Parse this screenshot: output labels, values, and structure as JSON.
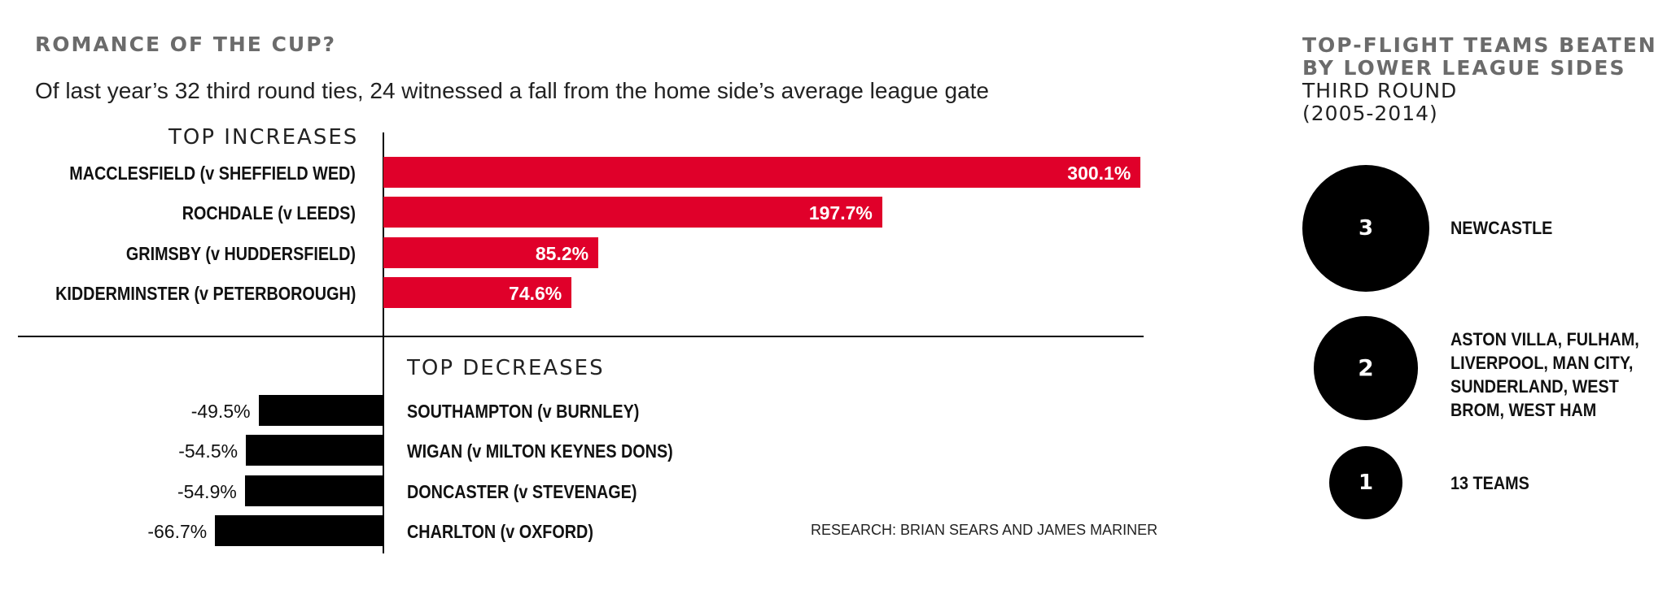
{
  "chart_data": [
    {
      "type": "bar",
      "orientation": "horizontal",
      "title": "ROMANCE OF THE CUP?",
      "subtitle": "Of last year’s 32 third round ties, 24 witnessed a fall from the home side’s average league gate",
      "increases": {
        "heading": "TOP INCREASES",
        "categories": [
          "MACCLESFIELD (v SHEFFIELD WED)",
          "ROCHDALE (v LEEDS)",
          "GRIMSBY (v HUDDERSFIELD)",
          "KIDDERMINSTER (v PETERBOROUGH)"
        ],
        "values": [
          300.1,
          197.7,
          85.2,
          74.6
        ],
        "value_labels": [
          "300.1%",
          "197.7%",
          "85.2%",
          "74.6%"
        ]
      },
      "decreases": {
        "heading": "TOP DECREASES",
        "categories": [
          "SOUTHAMPTON (v BURNLEY)",
          "WIGAN (v MILTON KEYNES DONS)",
          "DONCASTER (v STEVENAGE)",
          "CHARLTON (v OXFORD)"
        ],
        "values": [
          -49.5,
          -54.5,
          -54.9,
          -66.7
        ],
        "value_labels": [
          "-49.5%",
          "-54.5%",
          "-54.9%",
          "-66.7%"
        ]
      },
      "unit": "%",
      "colors": {
        "increase": "#e0002a",
        "decrease": "#000000"
      },
      "credit": "RESEARCH: BRIAN SEARS AND JAMES MARINER"
    },
    {
      "type": "bubble",
      "title_bold": "TOP-FLIGHT TEAMS BEATEN BY LOWER LEAGUE SIDES",
      "title_light": "THIRD ROUND",
      "title_period": "(2005-2014)",
      "values": [
        3,
        2,
        1
      ],
      "value_labels": [
        "3",
        "2",
        "1"
      ],
      "labels": [
        [
          "NEWCASTLE"
        ],
        [
          "ASTON VILLA, FULHAM,",
          "LIVERPOOL, MAN CITY,",
          "SUNDERLAND, WEST",
          "BROM, WEST HAM"
        ],
        [
          "13 TEAMS"
        ]
      ]
    }
  ]
}
